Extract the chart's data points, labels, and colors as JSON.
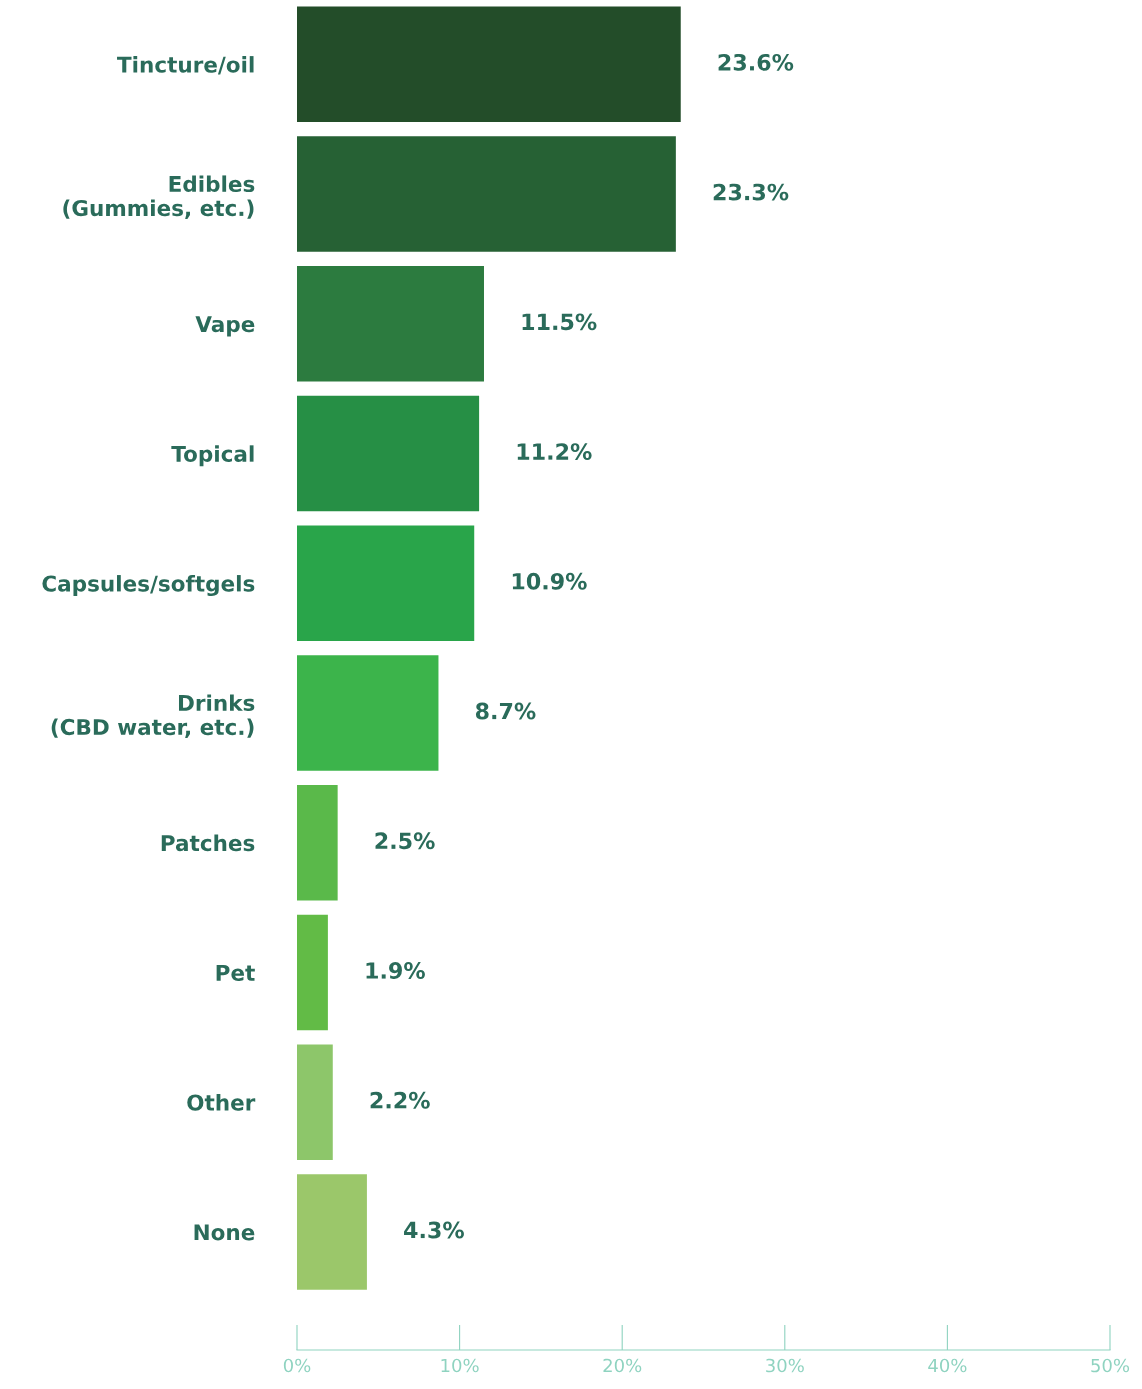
{
  "chart_data": {
    "type": "bar",
    "orientation": "horizontal",
    "categories": [
      "Tincture/oil",
      "Edibles\n(Gummies, etc.)",
      "Vape",
      "Topical",
      "Capsules/softgels",
      "Drinks\n(CBD water, etc.)",
      "Patches",
      "Pet",
      "Other",
      "None"
    ],
    "values": [
      23.6,
      23.3,
      11.5,
      11.2,
      10.9,
      8.7,
      2.5,
      1.9,
      2.2,
      4.3
    ],
    "value_labels": [
      "23.6%",
      "23.3%",
      "11.5%",
      "11.2%",
      "10.9%",
      "8.7%",
      "2.5%",
      "1.9%",
      "2.2%",
      "4.3%"
    ],
    "colors": [
      "#234d29",
      "#266134",
      "#2c7b3f",
      "#268f45",
      "#29a54a",
      "#3cb44b",
      "#5ab94a",
      "#62bb46",
      "#8dc66a",
      "#9bc76a"
    ],
    "xlim": [
      0,
      50
    ],
    "xticks": [
      {
        "value": 0,
        "label": "0%"
      },
      {
        "value": 10,
        "label": "10%"
      },
      {
        "value": 20,
        "label": "20%"
      },
      {
        "value": 30,
        "label": "30%"
      },
      {
        "value": 40,
        "label": "40%"
      },
      {
        "value": 50,
        "label": "50%"
      }
    ],
    "grid": false
  }
}
